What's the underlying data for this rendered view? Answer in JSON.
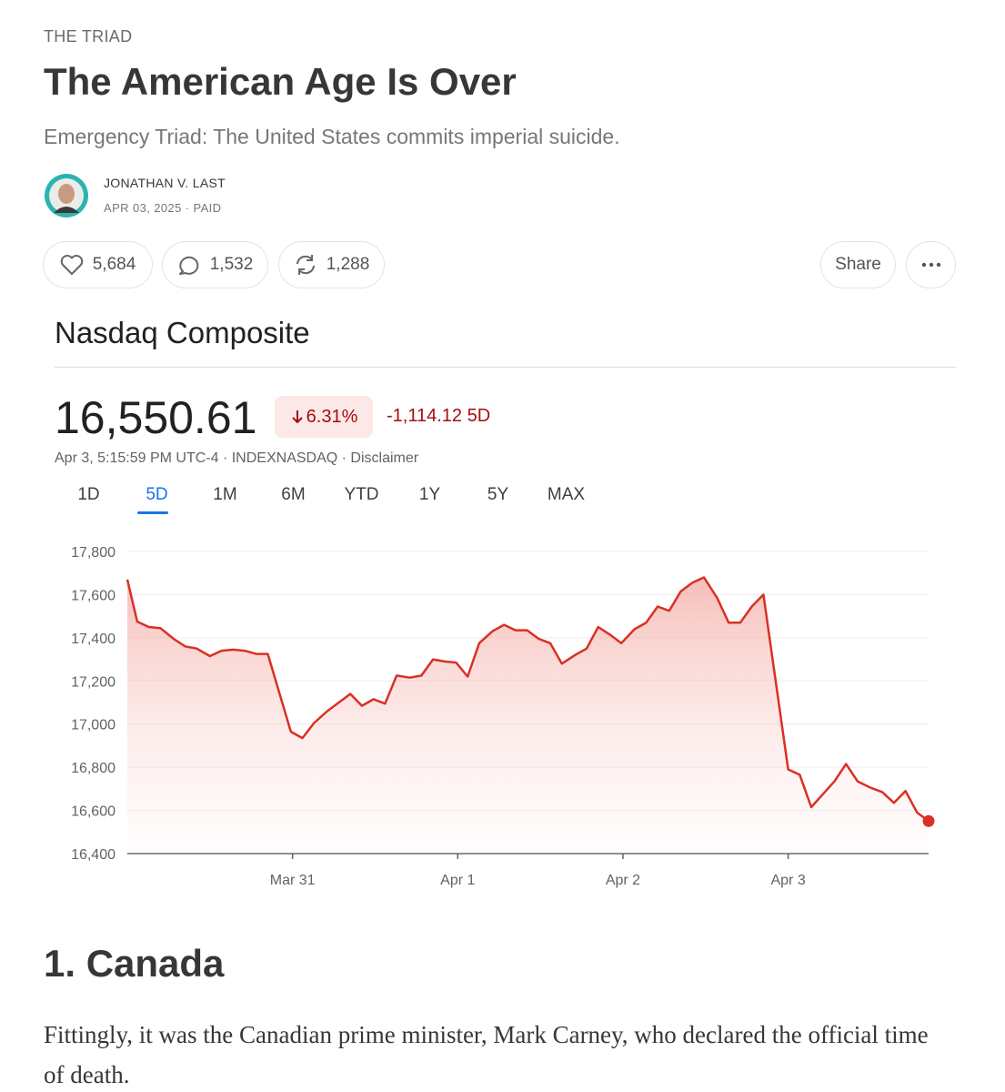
{
  "article": {
    "kicker": "THE TRIAD",
    "title": "The American Age Is Over",
    "subtitle": "Emergency Triad: The United States commits imperial suicide.",
    "author": "JONATHAN V. LAST",
    "meta": "APR 03, 2025 · PAID"
  },
  "actions": {
    "likes": "5,684",
    "comments": "1,532",
    "restacks": "1,288",
    "share": "Share"
  },
  "quote": {
    "price": "16,550.61",
    "change_pct": "6.31%",
    "change": "-1,114.12 5D",
    "meta": "Apr 3, 5:15:59 PM UTC-4 · INDEXNASDAQ · Disclaimer"
  },
  "tabs": [
    "1D",
    "5D",
    "1M",
    "6M",
    "YTD",
    "1Y",
    "5Y",
    "MAX"
  ],
  "chart_data": {
    "type": "line",
    "title": "Nasdaq Composite",
    "color": "#d93025",
    "grid": true,
    "x": [
      0,
      0.06,
      0.13,
      0.2,
      0.28,
      0.35,
      0.42,
      0.5,
      0.57,
      0.64,
      0.71,
      0.78,
      0.85,
      0.99,
      1.06,
      1.13,
      1.21,
      1.28,
      1.35,
      1.42,
      1.49,
      1.56,
      1.63,
      1.71,
      1.78,
      1.85,
      1.92,
      1.99,
      2.06,
      2.13,
      2.21,
      2.28,
      2.35,
      2.42,
      2.49,
      2.56,
      2.63,
      2.71,
      2.78,
      2.85,
      2.92,
      2.99,
      3.07,
      3.14,
      3.21,
      3.28,
      3.35,
      3.42,
      3.49,
      3.57,
      3.64,
      3.71,
      3.78,
      3.85,
      4.0,
      4.07,
      4.14,
      4.21,
      4.28,
      4.35,
      4.42,
      4.5,
      4.57,
      4.64,
      4.71,
      4.78,
      4.85
    ],
    "values": [
      17670,
      17475,
      17450,
      17445,
      17395,
      17360,
      17350,
      17315,
      17340,
      17345,
      17340,
      17325,
      17325,
      16965,
      16935,
      17005,
      17060,
      17100,
      17140,
      17085,
      17115,
      17095,
      17225,
      17215,
      17225,
      17300,
      17290,
      17285,
      17220,
      17375,
      17430,
      17460,
      17435,
      17435,
      17395,
      17375,
      17280,
      17320,
      17350,
      17450,
      17415,
      17375,
      17440,
      17470,
      17545,
      17525,
      17615,
      17655,
      17680,
      17585,
      17470,
      17470,
      17545,
      17600,
      16790,
      16765,
      16615,
      16675,
      16735,
      16815,
      16735,
      16705,
      16685,
      16635,
      16690,
      16590,
      16550.61
    ],
    "xlim": [
      0,
      4.85
    ],
    "ylim": [
      16400,
      17800
    ],
    "xticks": [
      {
        "value": 1,
        "label": "Mar 31"
      },
      {
        "value": 2,
        "label": "Apr 1"
      },
      {
        "value": 3,
        "label": "Apr 2"
      },
      {
        "value": 4,
        "label": "Apr 3"
      }
    ],
    "yticks": [
      {
        "value": 16400,
        "label": "16,400"
      },
      {
        "value": 16600,
        "label": "16,600"
      },
      {
        "value": 16800,
        "label": "16,800"
      },
      {
        "value": 17000,
        "label": "17,000"
      },
      {
        "value": 17200,
        "label": "17,200"
      },
      {
        "value": 17400,
        "label": "17,400"
      },
      {
        "value": 17600,
        "label": "17,600"
      },
      {
        "value": 17800,
        "label": "17,800"
      }
    ]
  },
  "section": {
    "heading": "1. Canada",
    "paragraph": "Fittingly, it was the Canadian prime minister, Mark Carney, who declared the official time of death."
  }
}
